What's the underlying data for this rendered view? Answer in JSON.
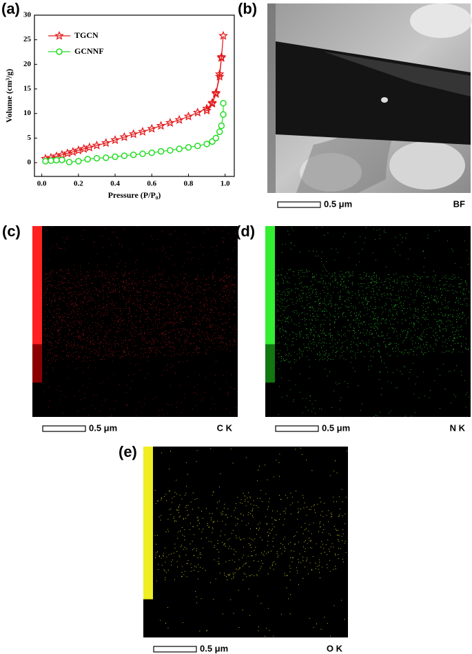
{
  "chart_data": {
    "type": "line",
    "label": "(a)",
    "x_label": "Pressure (P/P₀)",
    "y_label": "Volume (cm³/g)",
    "xlim": [
      -0.04,
      1.05
    ],
    "ylim": [
      -2.8,
      30
    ],
    "xticks": [
      {
        "value": 0,
        "label": "0.0"
      },
      {
        "value": 0.2,
        "label": "0.2"
      },
      {
        "value": 0.4,
        "label": "0.4"
      },
      {
        "value": 0.6,
        "label": "0.6"
      },
      {
        "value": 0.8,
        "label": "0.8"
      },
      {
        "value": 1,
        "label": "1.0"
      }
    ],
    "yticks": [
      0,
      5,
      10,
      15,
      20,
      25,
      30
    ],
    "legend": "upper left",
    "series": [
      {
        "name": "TGCN",
        "color": "#e31a1c",
        "marker": "star",
        "x": [
          0.02,
          0.05,
          0.08,
          0.11,
          0.14,
          0.17,
          0.2,
          0.23,
          0.26,
          0.3,
          0.35,
          0.4,
          0.45,
          0.5,
          0.55,
          0.6,
          0.65,
          0.7,
          0.75,
          0.8,
          0.85,
          0.9,
          0.93,
          0.95,
          0.97,
          0.98,
          0.99,
          0.98,
          0.97,
          0.95,
          0.93,
          0.9
        ],
        "values": [
          0.8,
          1.0,
          1.3,
          1.6,
          1.9,
          2.2,
          2.5,
          2.8,
          3.1,
          3.5,
          4.0,
          4.6,
          5.2,
          5.8,
          6.3,
          6.9,
          7.5,
          8.1,
          8.7,
          9.4,
          10.2,
          11.0,
          12.0,
          14.0,
          17.5,
          21.3,
          25.8,
          21.5,
          18.0,
          14.2,
          12.2,
          10.6
        ]
      },
      {
        "name": "GCNNF",
        "color": "#22dd22",
        "marker": "circle",
        "x": [
          0.02,
          0.05,
          0.08,
          0.11,
          0.15,
          0.2,
          0.25,
          0.3,
          0.35,
          0.4,
          0.45,
          0.5,
          0.55,
          0.6,
          0.65,
          0.7,
          0.75,
          0.8,
          0.85,
          0.9,
          0.93,
          0.95,
          0.97,
          0.98,
          0.99,
          0.99
        ],
        "values": [
          0.3,
          0.4,
          0.5,
          0.55,
          0.1,
          0.3,
          0.7,
          0.9,
          1.0,
          1.2,
          1.4,
          1.6,
          1.8,
          2.0,
          2.3,
          2.5,
          2.8,
          3.1,
          3.4,
          3.8,
          4.3,
          5.0,
          6.3,
          7.5,
          9.8,
          12.1
        ]
      }
    ]
  },
  "images": [
    {
      "label": "(b)",
      "scale_bar": "0.5 μm",
      "signal": "BF"
    },
    {
      "label": "(c)",
      "scale_bar": "0.5 μm",
      "signal": "C K"
    },
    {
      "label": "(d)",
      "scale_bar": "0.5 μm",
      "signal": "N K"
    },
    {
      "label": "(e)",
      "scale_bar": "0.5 μm",
      "signal": "O K"
    }
  ]
}
